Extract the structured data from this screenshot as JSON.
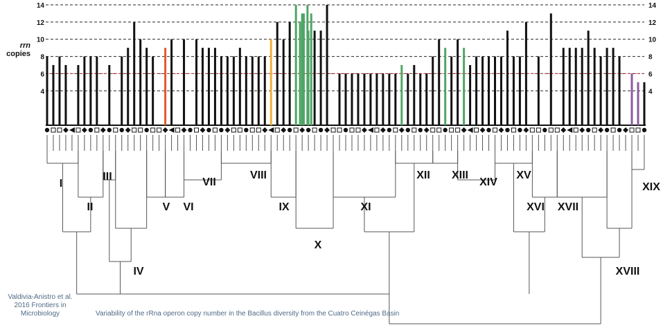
{
  "chart_data": {
    "type": "bar",
    "ylabel_italic": "rrn",
    "ylabel": "copies",
    "yticks": [
      4,
      6,
      8,
      10,
      12,
      14
    ],
    "ylim": [
      0,
      14
    ],
    "reference_line": 6,
    "grid": true,
    "values": [
      8,
      7,
      8,
      7,
      0,
      7,
      8,
      8,
      8,
      0,
      7,
      0,
      8,
      9,
      12,
      10,
      9,
      8,
      0,
      9,
      10,
      0,
      10,
      0,
      10,
      9,
      9,
      9,
      8,
      8,
      8,
      9,
      8,
      8,
      8,
      8,
      10,
      12,
      10,
      12,
      14,
      13,
      11,
      11,
      11,
      14,
      0,
      6,
      6,
      6,
      6,
      6,
      6,
      6,
      6,
      6,
      6,
      7,
      6,
      7,
      6,
      6,
      8,
      10,
      9,
      8,
      10,
      9,
      7,
      8,
      8,
      8,
      8,
      8,
      11,
      8,
      8,
      12,
      0,
      8,
      0,
      13,
      0,
      9,
      9,
      9,
      9,
      11,
      9,
      8,
      9,
      9,
      8,
      0,
      6,
      5,
      5
    ],
    "bar_colors": {
      "default": "#111111",
      "orange": "#f0b03c",
      "red": "#e05a2a",
      "green": "#4fa565",
      "purple": "#8e5a9e"
    },
    "clade_labels": [
      "I",
      "II",
      "III",
      "IV",
      "V",
      "VI",
      "VII",
      "VIII",
      "IX",
      "X",
      "XI",
      "XII",
      "XIII",
      "XIV",
      "XV",
      "XVI",
      "XVII",
      "XVIII",
      "XIX"
    ]
  },
  "credit_lines": [
    "Valdivia-Anistro et al.",
    "2016 Frontiers in",
    "Microbiology"
  ],
  "caption": "Variability of the rRna operon copy number in the Bacillus diversity from the Cuatro Ceinégas Basin"
}
